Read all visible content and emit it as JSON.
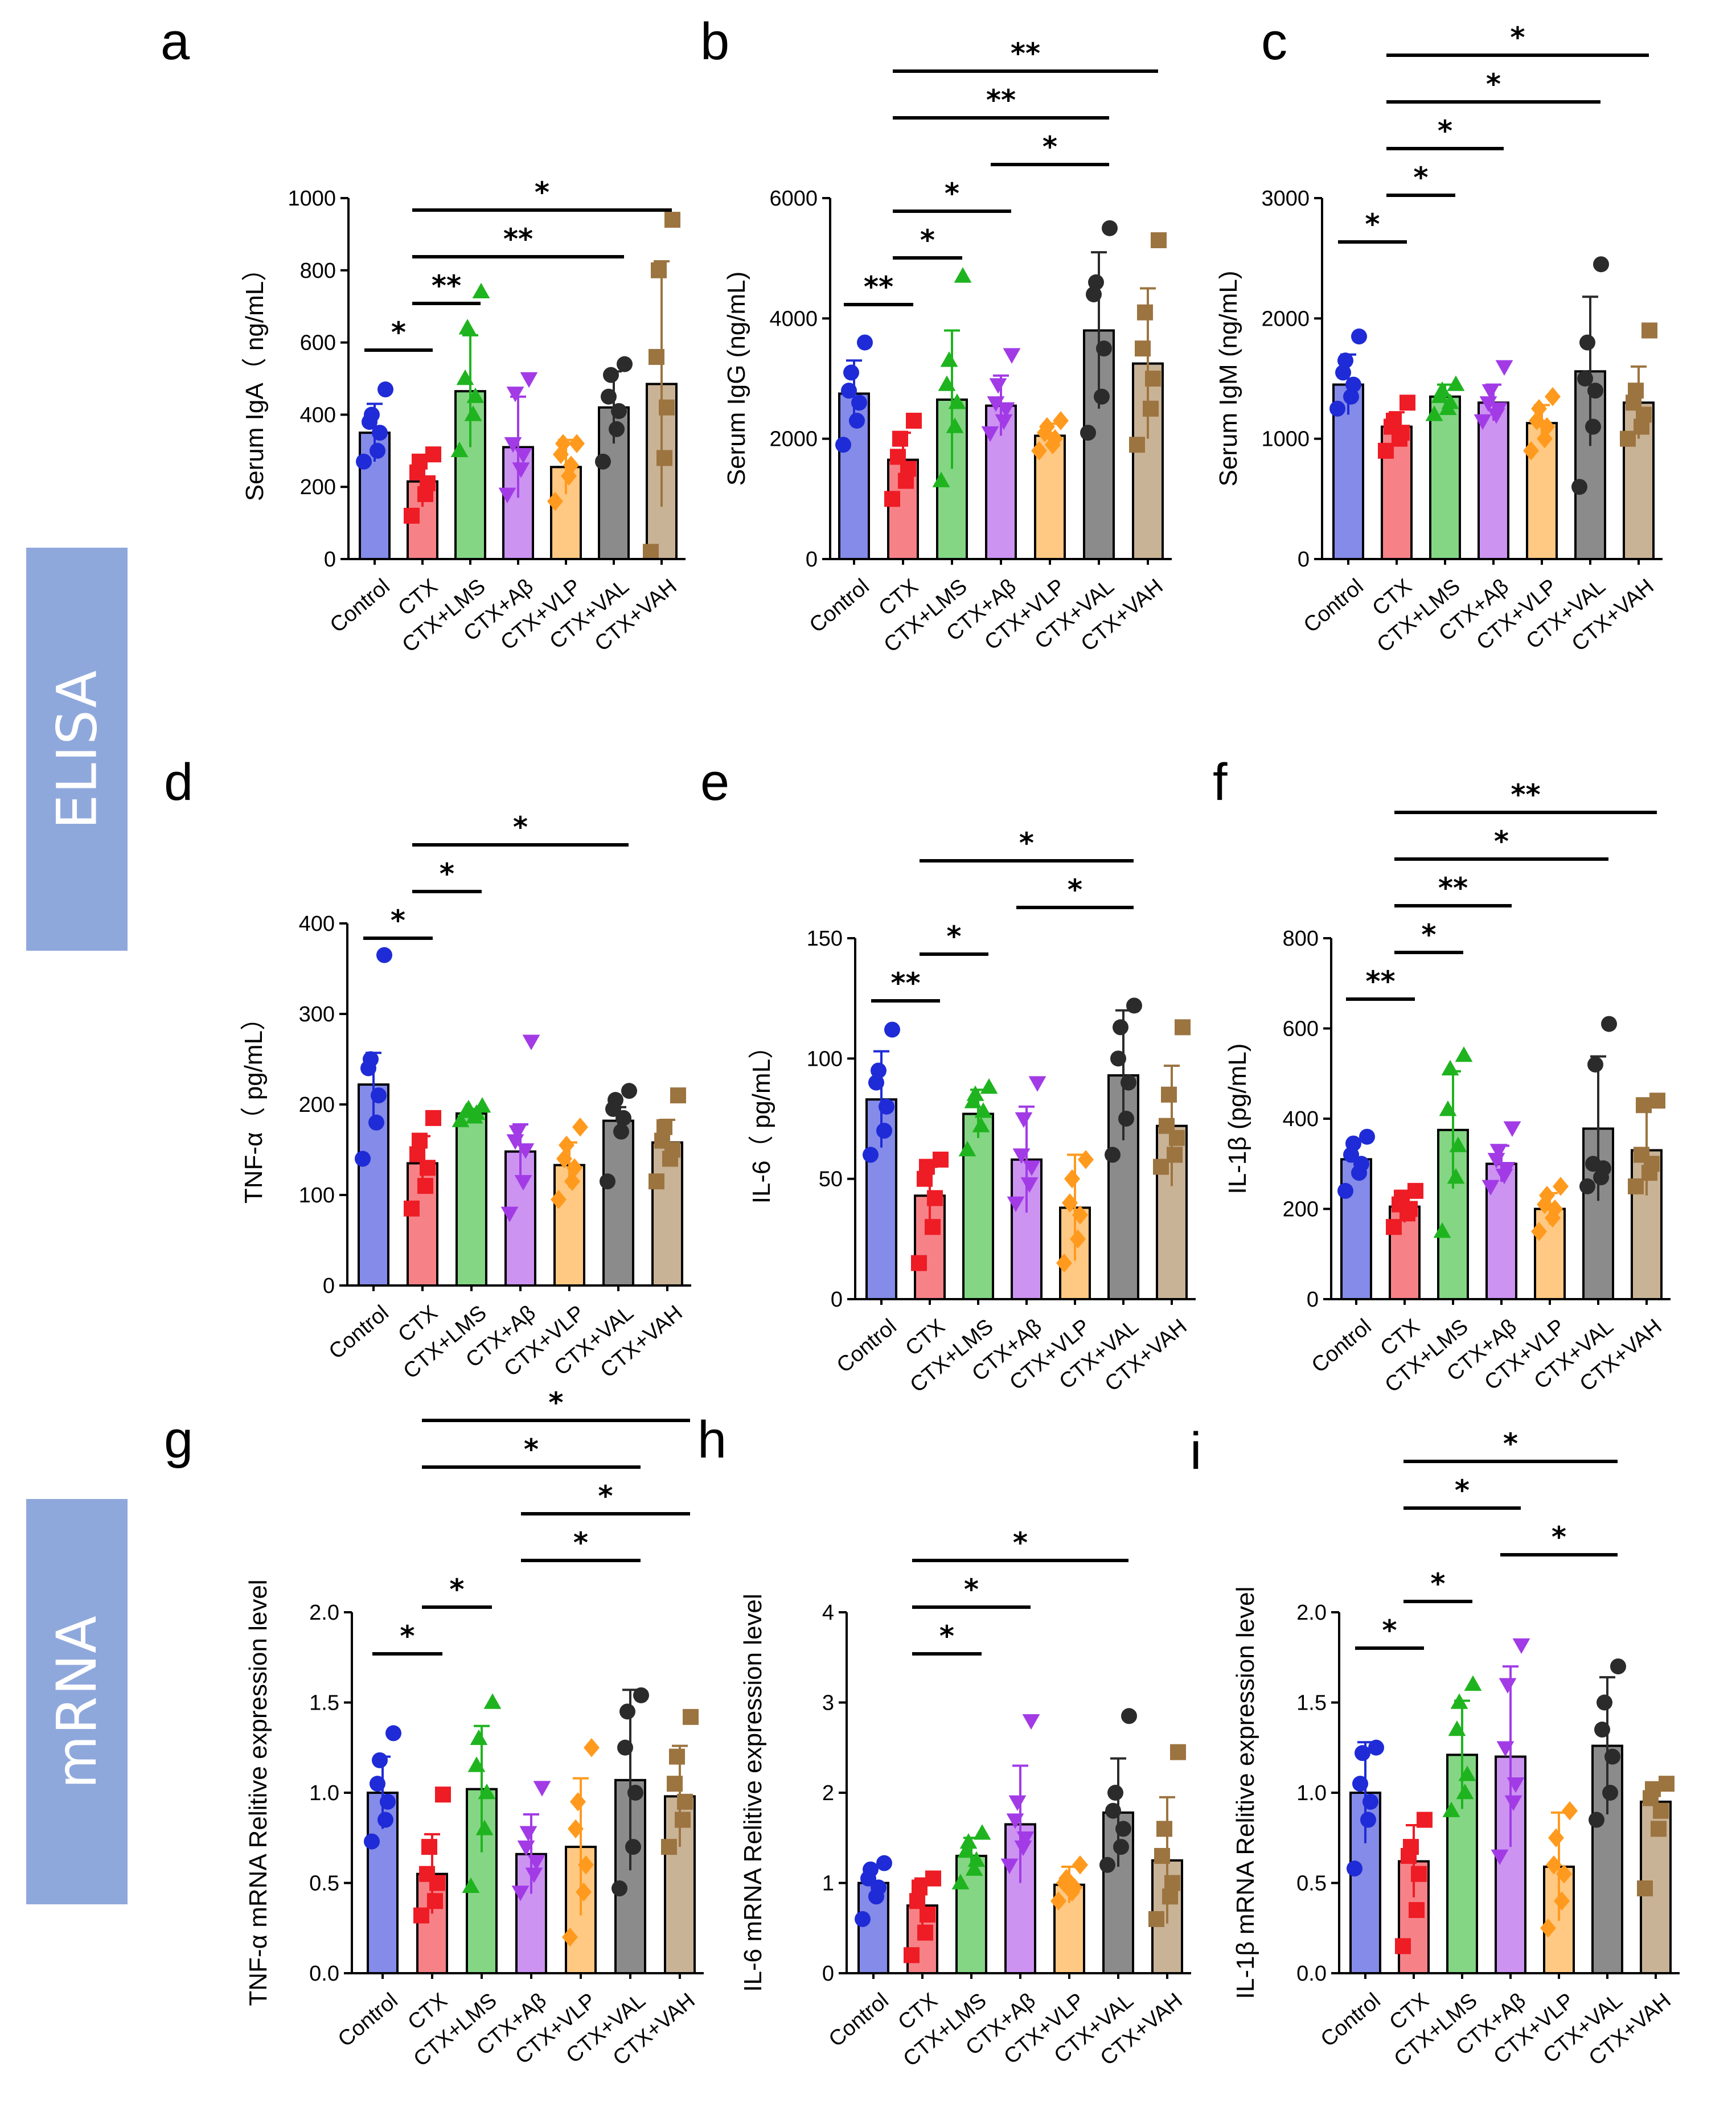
{
  "figure": {
    "side_labels": [
      "ELISA",
      "mRNA"
    ],
    "panel_letters": [
      "a",
      "b",
      "c",
      "d",
      "e",
      "f",
      "g",
      "h",
      "i"
    ]
  },
  "colors": {
    "groups": [
      "#1f2bd6",
      "#ee1c25",
      "#1fb41f",
      "#a23be6",
      "#ff9a1e",
      "#2b2b2b",
      "#9c7440"
    ],
    "band": "#8fa8dc",
    "ink": "#000000"
  },
  "markers": [
    "circle",
    "square",
    "triangle-up",
    "triangle-down",
    "diamond",
    "circle",
    "square"
  ],
  "chart_data": [
    {
      "id": "a",
      "type": "bar",
      "categories": [
        "Control",
        "CTX",
        "CTX+LMS",
        "CTX+Aβ",
        "CTX+VLP",
        "CTX+VAL",
        "CTX+VAH"
      ],
      "ylabel": "Serum IgA（ ng/mL）",
      "ylim": [
        0,
        1000
      ],
      "yticks": [
        "0",
        "200",
        "400",
        "600",
        "800",
        "1000"
      ],
      "means": [
        350,
        215,
        465,
        310,
        255,
        420,
        485
      ],
      "sd": [
        80,
        70,
        155,
        140,
        75,
        100,
        340
      ],
      "points": [
        [
          270,
          300,
          350,
          380,
          400,
          470
        ],
        [
          120,
          180,
          210,
          240,
          270,
          290
        ],
        [
          300,
          400,
          450,
          500,
          640,
          740
        ],
        [
          180,
          250,
          290,
          320,
          460,
          500
        ],
        [
          160,
          230,
          260,
          290,
          320,
          320
        ],
        [
          270,
          360,
          410,
          450,
          510,
          540
        ],
        [
          20,
          280,
          420,
          560,
          800,
          940
        ]
      ],
      "sig": [
        {
          "from": 0,
          "to": 1,
          "label": "*"
        },
        {
          "from": 1,
          "to": 2,
          "label": "**"
        },
        {
          "from": 1,
          "to": 5,
          "label": "**"
        },
        {
          "from": 1,
          "to": 6,
          "label": "*"
        }
      ]
    },
    {
      "id": "b",
      "type": "bar",
      "categories": [
        "Control",
        "CTX",
        "CTX+LMS",
        "CTX+Aβ",
        "CTX+VLP",
        "CTX+VAL",
        "CTX+VAH"
      ],
      "ylabel": "Serum IgG (ng/mL)",
      "ylim": [
        0,
        6000
      ],
      "yticks": [
        "0",
        "2000",
        "4000",
        "6000"
      ],
      "means": [
        2750,
        1650,
        2650,
        2550,
        2050,
        3800,
        3250
      ],
      "sd": [
        550,
        450,
        1150,
        500,
        200,
        1300,
        1250
      ],
      "points": [
        [
          1900,
          2300,
          2600,
          2800,
          3100,
          3600
        ],
        [
          1000,
          1300,
          1500,
          1700,
          2000,
          2300
        ],
        [
          1300,
          2200,
          2600,
          2900,
          3300,
          4700
        ],
        [
          2100,
          2300,
          2500,
          2600,
          2900,
          3400
        ],
        [
          1800,
          1900,
          2000,
          2100,
          2200,
          2300
        ],
        [
          2100,
          2700,
          3500,
          4400,
          4600,
          5500
        ],
        [
          1900,
          2500,
          3000,
          3500,
          4100,
          5300
        ]
      ],
      "sig": [
        {
          "from": 0,
          "to": 1,
          "label": "**"
        },
        {
          "from": 1,
          "to": 2,
          "label": "*"
        },
        {
          "from": 1,
          "to": 3,
          "label": "*"
        },
        {
          "from": 3,
          "to": 5,
          "label": "*"
        },
        {
          "from": 1,
          "to": 5,
          "label": "**"
        },
        {
          "from": 1,
          "to": 6,
          "label": "**"
        }
      ]
    },
    {
      "id": "c",
      "type": "bar",
      "categories": [
        "Control",
        "CTX",
        "CTX+LMS",
        "CTX+Aβ",
        "CTX+VLP",
        "CTX+VAL",
        "CTX+VAH"
      ],
      "ylabel": "Serum IgM (ng/mL)",
      "ylim": [
        0,
        3000
      ],
      "yticks": [
        "0",
        "1000",
        "2000",
        "3000"
      ],
      "means": [
        1450,
        1100,
        1350,
        1300,
        1130,
        1560,
        1300
      ],
      "sd": [
        250,
        120,
        100,
        150,
        150,
        620,
        300
      ],
      "points": [
        [
          1250,
          1350,
          1450,
          1550,
          1650,
          1850
        ],
        [
          900,
          1000,
          1050,
          1100,
          1150,
          1300
        ],
        [
          1200,
          1250,
          1300,
          1350,
          1400,
          1450
        ],
        [
          1150,
          1200,
          1250,
          1300,
          1400,
          1600
        ],
        [
          900,
          1000,
          1100,
          1150,
          1250,
          1350
        ],
        [
          600,
          1100,
          1400,
          1500,
          1800,
          2450
        ],
        [
          1000,
          1100,
          1200,
          1300,
          1400,
          1900
        ]
      ],
      "sig": [
        {
          "from": 0,
          "to": 1,
          "label": "*"
        },
        {
          "from": 1,
          "to": 2,
          "label": "*"
        },
        {
          "from": 1,
          "to": 3,
          "label": "*"
        },
        {
          "from": 1,
          "to": 5,
          "label": "*"
        },
        {
          "from": 1,
          "to": 6,
          "label": "*"
        }
      ]
    },
    {
      "id": "d",
      "type": "bar",
      "categories": [
        "Control",
        "CTX",
        "CTX+LMS",
        "CTX+Aβ",
        "CTX+VLP",
        "CTX+VAL",
        "CTX+VAH"
      ],
      "ylabel": "TNF-α（ pg/mL）",
      "ylim": [
        0,
        400
      ],
      "yticks": [
        "0",
        "100",
        "200",
        "300",
        "400"
      ],
      "means": [
        222,
        135,
        190,
        148,
        133,
        182,
        158
      ],
      "sd": [
        35,
        30,
        5,
        30,
        25,
        15,
        25
      ],
      "points": [
        [
          140,
          180,
          210,
          240,
          250,
          365
        ],
        [
          85,
          110,
          130,
          145,
          160,
          185
        ],
        [
          182,
          186,
          190,
          192,
          195,
          198
        ],
        [
          80,
          115,
          150,
          160,
          170,
          270
        ],
        [
          95,
          115,
          130,
          140,
          155,
          175
        ],
        [
          115,
          170,
          185,
          195,
          205,
          215
        ],
        [
          115,
          140,
          150,
          160,
          175,
          210
        ]
      ],
      "sig": [
        {
          "from": 0,
          "to": 1,
          "label": "*"
        },
        {
          "from": 1,
          "to": 2,
          "label": "*"
        },
        {
          "from": 1,
          "to": 5,
          "label": "*"
        }
      ]
    },
    {
      "id": "e",
      "type": "bar",
      "categories": [
        "Control",
        "CTX",
        "CTX+LMS",
        "CTX+Aβ",
        "CTX+VLP",
        "CTX+VAL",
        "CTX+VAH"
      ],
      "ylabel": "IL-6（ pg/mL）",
      "ylim": [
        0,
        150
      ],
      "yticks": [
        "0",
        "50",
        "100",
        "150"
      ],
      "means": [
        83,
        43,
        77,
        58,
        38,
        93,
        72
      ],
      "sd": [
        20,
        12,
        10,
        22,
        22,
        27,
        25
      ],
      "points": [
        [
          60,
          70,
          80,
          90,
          95,
          112
        ],
        [
          15,
          30,
          42,
          50,
          55,
          58
        ],
        [
          62,
          72,
          78,
          82,
          85,
          88
        ],
        [
          40,
          48,
          55,
          60,
          75,
          90
        ],
        [
          15,
          25,
          35,
          40,
          50,
          58
        ],
        [
          60,
          75,
          90,
          100,
          113,
          122
        ],
        [
          55,
          60,
          67,
          72,
          85,
          113
        ]
      ],
      "sig": [
        {
          "from": 0,
          "to": 1,
          "label": "**"
        },
        {
          "from": 1,
          "to": 2,
          "label": "*"
        },
        {
          "from": 1,
          "to": 5,
          "label": "*"
        },
        {
          "from": 3,
          "to": 5,
          "label": "*"
        }
      ]
    },
    {
      "id": "f",
      "type": "bar",
      "categories": [
        "Control",
        "CTX",
        "CTX+LMS",
        "CTX+Aβ",
        "CTX+VLP",
        "CTX+VAL",
        "CTX+VAH"
      ],
      "ylabel": "IL-1β (pg/mL)",
      "ylim": [
        0,
        800
      ],
      "yticks": [
        "0",
        "200",
        "400",
        "600",
        "800"
      ],
      "means": [
        310,
        205,
        375,
        300,
        200,
        378,
        330
      ],
      "sd": [
        45,
        35,
        130,
        40,
        35,
        160,
        100
      ],
      "points": [
        [
          240,
          280,
          300,
          320,
          345,
          360
        ],
        [
          160,
          190,
          200,
          210,
          225,
          240
        ],
        [
          150,
          270,
          340,
          420,
          510,
          540
        ],
        [
          250,
          275,
          290,
          310,
          330,
          380
        ],
        [
          150,
          180,
          200,
          210,
          230,
          250
        ],
        [
          250,
          270,
          290,
          300,
          520,
          610
        ],
        [
          250,
          280,
          300,
          320,
          430,
          440
        ]
      ],
      "sig": [
        {
          "from": 0,
          "to": 1,
          "label": "**"
        },
        {
          "from": 1,
          "to": 2,
          "label": "*"
        },
        {
          "from": 1,
          "to": 3,
          "label": "**"
        },
        {
          "from": 1,
          "to": 5,
          "label": "*"
        },
        {
          "from": 1,
          "to": 6,
          "label": "**"
        }
      ]
    },
    {
      "id": "g",
      "type": "bar",
      "categories": [
        "Control",
        "CTX",
        "CTX+LMS",
        "CTX+Aβ",
        "CTX+VLP",
        "CTX+VAL",
        "CTX+VAH"
      ],
      "ylabel": "TNF-α mRNA Relitive expression level",
      "ylim": [
        0,
        2.0
      ],
      "yticks": [
        "0.0",
        "0.5",
        "1.0",
        "1.5",
        "2.0"
      ],
      "means": [
        1.0,
        0.55,
        1.02,
        0.66,
        0.7,
        1.07,
        0.98
      ],
      "sd": [
        0.2,
        0.22,
        0.35,
        0.22,
        0.38,
        0.5,
        0.28
      ],
      "points": [
        [
          0.73,
          0.85,
          0.95,
          1.05,
          1.18,
          1.33
        ],
        [
          0.32,
          0.4,
          0.5,
          0.55,
          0.7,
          0.99
        ],
        [
          0.48,
          0.8,
          1.0,
          1.15,
          1.3,
          1.5
        ],
        [
          0.45,
          0.55,
          0.62,
          0.7,
          0.78,
          1.03
        ],
        [
          0.2,
          0.45,
          0.6,
          0.8,
          0.95,
          1.25
        ],
        [
          0.47,
          0.7,
          1.0,
          1.25,
          1.45,
          1.54
        ],
        [
          0.7,
          0.85,
          0.95,
          1.05,
          1.2,
          1.42
        ]
      ],
      "sig": [
        {
          "from": 0,
          "to": 1,
          "label": "*"
        },
        {
          "from": 1,
          "to": 2,
          "label": "*"
        },
        {
          "from": 3,
          "to": 5,
          "label": "*"
        },
        {
          "from": 3,
          "to": 6,
          "label": "*"
        },
        {
          "from": 1,
          "to": 5,
          "label": "*"
        },
        {
          "from": 1,
          "to": 6,
          "label": "*"
        }
      ]
    },
    {
      "id": "h",
      "type": "bar",
      "categories": [
        "Control",
        "CTX",
        "CTX+LMS",
        "CTX+Aβ",
        "CTX+VLP",
        "CTX+VAL",
        "CTX+VAH"
      ],
      "ylabel": "IL-6 mRNA Relitive expression level",
      "ylim": [
        0,
        4
      ],
      "yticks": [
        "0",
        "1",
        "2",
        "3",
        "4"
      ],
      "means": [
        1.0,
        0.75,
        1.3,
        1.65,
        0.98,
        1.78,
        1.25
      ],
      "sd": [
        0.2,
        0.3,
        0.2,
        0.65,
        0.2,
        0.6,
        0.7
      ],
      "points": [
        [
          0.6,
          0.85,
          0.95,
          1.05,
          1.15,
          1.22
        ],
        [
          0.2,
          0.45,
          0.65,
          0.8,
          0.95,
          1.05
        ],
        [
          1.0,
          1.15,
          1.25,
          1.35,
          1.45,
          1.55
        ],
        [
          1.2,
          1.4,
          1.5,
          1.7,
          1.9,
          2.8
        ],
        [
          0.8,
          0.9,
          0.95,
          1.0,
          1.05,
          1.2
        ],
        [
          1.2,
          1.4,
          1.6,
          1.8,
          2.0,
          2.85
        ],
        [
          0.6,
          0.85,
          1.0,
          1.3,
          1.6,
          2.45
        ]
      ],
      "sig": [
        {
          "from": 1,
          "to": 2,
          "label": "*"
        },
        {
          "from": 1,
          "to": 3,
          "label": "*"
        },
        {
          "from": 1,
          "to": 5,
          "label": "*"
        }
      ]
    },
    {
      "id": "i",
      "type": "bar",
      "categories": [
        "Control",
        "CTX",
        "CTX+LMS",
        "CTX+Aβ",
        "CTX+VLP",
        "CTX+VAL",
        "CTX+VAH"
      ],
      "ylabel": "IL-1β mRNA Relitive expression level",
      "ylim": [
        0,
        2.0
      ],
      "yticks": [
        "0.0",
        "0.5",
        "1.0",
        "1.5",
        "2.0"
      ],
      "means": [
        1.0,
        0.62,
        1.21,
        1.2,
        0.59,
        1.26,
        0.95
      ],
      "sd": [
        0.28,
        0.2,
        0.3,
        0.5,
        0.3,
        0.38,
        0.08
      ],
      "points": [
        [
          0.58,
          0.85,
          0.95,
          1.05,
          1.22,
          1.25
        ],
        [
          0.15,
          0.35,
          0.55,
          0.65,
          0.7,
          0.85
        ],
        [
          0.9,
          1.0,
          1.1,
          1.35,
          1.5,
          1.6
        ],
        [
          0.65,
          0.95,
          1.05,
          1.25,
          1.6,
          1.82
        ],
        [
          0.25,
          0.4,
          0.55,
          0.6,
          0.75,
          0.9
        ],
        [
          0.85,
          1.0,
          1.2,
          1.35,
          1.5,
          1.7
        ],
        [
          0.47,
          0.8,
          0.9,
          0.97,
          1.02,
          1.05
        ]
      ],
      "sig": [
        {
          "from": 0,
          "to": 1,
          "label": "*"
        },
        {
          "from": 1,
          "to": 2,
          "label": "*"
        },
        {
          "from": 3,
          "to": 5,
          "label": "*"
        },
        {
          "from": 1,
          "to": 3,
          "label": "*"
        },
        {
          "from": 1,
          "to": 5,
          "label": "*"
        }
      ]
    }
  ]
}
